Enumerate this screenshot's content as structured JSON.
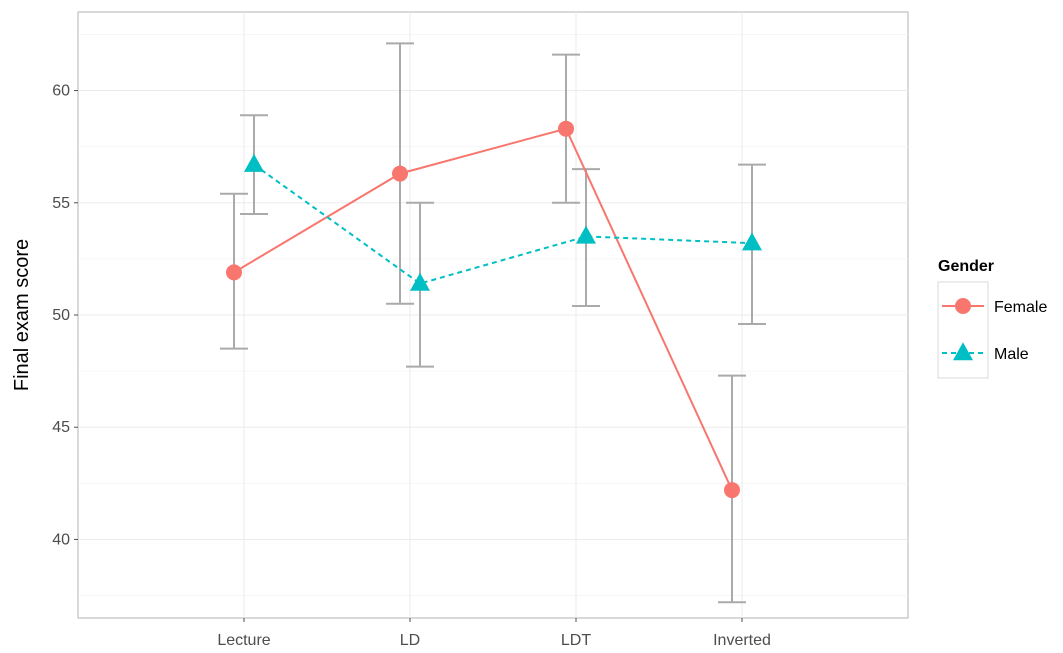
{
  "chart_data": {
    "type": "line",
    "title": "",
    "xlabel": "",
    "ylabel": "Final exam score",
    "categories": [
      "Lecture",
      "LD",
      "LDT",
      "Inverted"
    ],
    "ylim": [
      36.5,
      63.5
    ],
    "yticks": [
      40,
      45,
      50,
      55,
      60
    ],
    "grid": true,
    "legend": {
      "title": "Gender",
      "position": "right"
    },
    "series": [
      {
        "name": "Female",
        "color": "#F8766D",
        "marker": "circle",
        "line_style": "solid",
        "values": [
          51.9,
          56.3,
          58.3,
          42.2
        ],
        "error_low": [
          48.5,
          50.5,
          55.0,
          37.2
        ],
        "error_high": [
          55.4,
          62.1,
          61.6,
          47.3
        ]
      },
      {
        "name": "Male",
        "color": "#00BFC4",
        "marker": "triangle",
        "line_style": "dashed",
        "values": [
          56.7,
          51.4,
          53.5,
          53.2
        ],
        "error_low": [
          54.5,
          47.7,
          50.4,
          49.6
        ],
        "error_high": [
          58.9,
          55.0,
          56.5,
          56.7
        ]
      }
    ],
    "errorbar_color": "#aaaaaa"
  }
}
